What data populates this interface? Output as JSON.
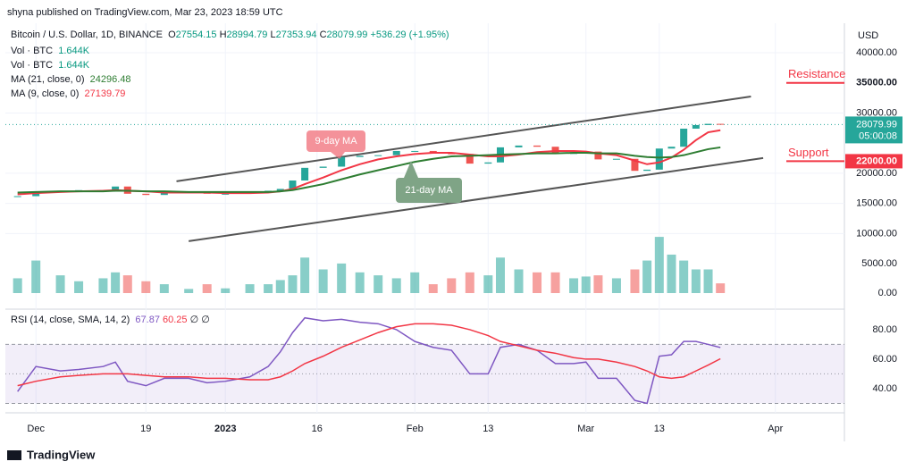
{
  "header": {
    "text": "shyna published on TradingView.com, Mar 23, 2023 18:59 UTC",
    "currency": "USD"
  },
  "legend": {
    "symbol": "Bitcoin / U.S. Dollar, 1D, BINANCE",
    "ohlc": [
      [
        "O",
        "27554.15"
      ],
      [
        "H",
        "28994.79"
      ],
      [
        "L",
        "27353.94"
      ],
      [
        "C",
        "28079.99"
      ]
    ],
    "change": "+536.29 (+1.95%)",
    "rows": [
      {
        "label": "Vol · BTC",
        "value": "1.644K"
      },
      {
        "label": "Vol · BTC",
        "value": "1.644K"
      },
      {
        "label": "MA (21, close, 0)",
        "value": "24296.48"
      },
      {
        "label": "MA (9, close, 0)",
        "value": "27139.79"
      }
    ],
    "rsi": {
      "label": "RSI (14, close, SMA, 14, 2)",
      "values": [
        "67.87",
        "60.25",
        "∅",
        "∅"
      ]
    }
  },
  "chart_data": [
    {
      "type": "candlestick",
      "up_color": "#26a69a",
      "down_color": "#ef5350",
      "x": [
        "2022-11-28",
        "2022-12-01",
        "2022-12-05",
        "2022-12-08",
        "2022-12-12",
        "2022-12-14",
        "2022-12-16",
        "2022-12-19",
        "2022-12-22",
        "2022-12-26",
        "2022-12-29",
        "2023-01-01",
        "2023-01-05",
        "2023-01-08",
        "2023-01-10",
        "2023-01-12",
        "2023-01-14",
        "2023-01-17",
        "2023-01-20",
        "2023-01-23",
        "2023-01-26",
        "2023-01-29",
        "2023-02-01",
        "2023-02-04",
        "2023-02-07",
        "2023-02-10",
        "2023-02-13",
        "2023-02-15",
        "2023-02-18",
        "2023-02-21",
        "2023-02-24",
        "2023-02-27",
        "2023-03-01",
        "2023-03-03",
        "2023-03-06",
        "2023-03-09",
        "2023-03-11",
        "2023-03-13",
        "2023-03-15",
        "2023-03-17",
        "2023-03-19",
        "2023-03-21",
        "2023-03-23"
      ],
      "values": [
        16200,
        17000,
        17100,
        17200,
        17200,
        17800,
        16600,
        16400,
        16800,
        16900,
        16600,
        16600,
        16800,
        17100,
        17400,
        18800,
        20900,
        21100,
        22700,
        22900,
        23000,
        23700,
        23700,
        23300,
        23200,
        21600,
        21800,
        24300,
        24600,
        24400,
        23200,
        23500,
        23600,
        22300,
        22400,
        20400,
        20600,
        24100,
        24400,
        27400,
        28000,
        28200,
        28079.99
      ],
      "series": [
        {
          "name": "MA (9, close, 0)",
          "color": "#f23645",
          "values": [
            16500,
            16700,
            16900,
            17000,
            17100,
            17200,
            17100,
            17000,
            16800,
            16800,
            16800,
            16700,
            16700,
            16800,
            17000,
            17400,
            18200,
            19300,
            20500,
            21500,
            22300,
            22800,
            23200,
            23400,
            23400,
            23100,
            22800,
            22800,
            23100,
            23500,
            23700,
            23700,
            23600,
            23300,
            23000,
            22100,
            21500,
            21800,
            22600,
            23900,
            25500,
            26800,
            27139.79
          ]
        },
        {
          "name": "MA (21, close, 0)",
          "color": "#2e7d32",
          "values": [
            16800,
            16900,
            17000,
            17000,
            17000,
            17100,
            17100,
            17000,
            17000,
            16900,
            16900,
            16900,
            16900,
            16900,
            17000,
            17200,
            17600,
            18200,
            19000,
            19800,
            20500,
            21200,
            21900,
            22400,
            22800,
            22900,
            23000,
            23100,
            23200,
            23300,
            23300,
            23400,
            23400,
            23300,
            23300,
            22900,
            22700,
            22600,
            22700,
            23000,
            23500,
            24000,
            24296.48
          ]
        }
      ],
      "xlim": [
        "2022-11-26",
        "2023-04-12"
      ],
      "xticks": [
        {
          "value": "2022-12-01",
          "label": "Dec"
        },
        {
          "value": "2022-12-19",
          "label": "19"
        },
        {
          "value": "2023-01-01",
          "label": "2023"
        },
        {
          "value": "2023-01-16",
          "label": "16"
        },
        {
          "value": "2023-02-01",
          "label": "Feb"
        },
        {
          "value": "2023-02-13",
          "label": "13"
        },
        {
          "value": "2023-03-01",
          "label": "Mar"
        },
        {
          "value": "2023-03-13",
          "label": "13"
        },
        {
          "value": "2023-04-01",
          "label": "Apr"
        }
      ],
      "ylim": [
        -2400,
        44300
      ],
      "yticks": [
        {
          "value": 40000,
          "label": "40000.00"
        },
        {
          "value": 30000,
          "label": "30000.00"
        },
        {
          "value": 20000,
          "label": "20000.00"
        },
        {
          "value": 15000,
          "label": "15000.00"
        },
        {
          "value": 10000,
          "label": "10000.00"
        }
      ],
      "trendlines": [
        {
          "x": [
            "2022-12-24",
            "2023-03-28"
          ],
          "values": [
            18670,
            32740
          ]
        },
        {
          "x": [
            "2022-12-26",
            "2023-03-30"
          ],
          "values": [
            8740,
            22520
          ]
        }
      ],
      "levels": [
        {
          "label": "Resistance",
          "value": 35000,
          "value_label": "35000.00"
        },
        {
          "label": "Support",
          "value": 22000,
          "value_label": "22000.00"
        }
      ],
      "last": {
        "value": 28079.99,
        "countdown": "05:00:08"
      },
      "annotations": [
        {
          "text": "9-day MA"
        },
        {
          "text": "21-day MA"
        }
      ]
    },
    {
      "type": "bar",
      "up_color": "rgba(38,166,154,0.55)",
      "down_color": "rgba(239,83,80,0.55)",
      "x": [
        "2022-11-28",
        "2022-12-01",
        "2022-12-05",
        "2022-12-08",
        "2022-12-12",
        "2022-12-14",
        "2022-12-16",
        "2022-12-19",
        "2022-12-22",
        "2022-12-26",
        "2022-12-29",
        "2023-01-01",
        "2023-01-05",
        "2023-01-08",
        "2023-01-10",
        "2023-01-12",
        "2023-01-14",
        "2023-01-17",
        "2023-01-20",
        "2023-01-23",
        "2023-01-26",
        "2023-01-29",
        "2023-02-01",
        "2023-02-04",
        "2023-02-07",
        "2023-02-10",
        "2023-02-13",
        "2023-02-15",
        "2023-02-18",
        "2023-02-21",
        "2023-02-24",
        "2023-02-27",
        "2023-03-01",
        "2023-03-03",
        "2023-03-06",
        "2023-03-09",
        "2023-03-11",
        "2023-03-13",
        "2023-03-15",
        "2023-03-17",
        "2023-03-19",
        "2023-03-21",
        "2023-03-23"
      ],
      "values": [
        2500,
        5500,
        3000,
        2000,
        2500,
        3500,
        3000,
        2000,
        1500,
        700,
        1500,
        800,
        1500,
        1500,
        2200,
        3000,
        6000,
        4000,
        5000,
        3500,
        3000,
        2500,
        3500,
        1500,
        2500,
        3500,
        3000,
        6000,
        4000,
        3500,
        3500,
        2500,
        2800,
        3000,
        2500,
        4000,
        5500,
        9500,
        6500,
        5500,
        4000,
        4000,
        1644
      ],
      "ylim": [
        0,
        45000
      ],
      "yticks": [
        {
          "value": 5000,
          "label": "5000.00"
        },
        {
          "value": 0,
          "label": "0.00"
        }
      ]
    },
    {
      "type": "line",
      "band_color": "rgba(126,87,194,0.1)",
      "x": [
        "2022-11-28",
        "2022-12-01",
        "2022-12-05",
        "2022-12-08",
        "2022-12-12",
        "2022-12-14",
        "2022-12-16",
        "2022-12-19",
        "2022-12-22",
        "2022-12-26",
        "2022-12-29",
        "2023-01-01",
        "2023-01-05",
        "2023-01-08",
        "2023-01-10",
        "2023-01-12",
        "2023-01-14",
        "2023-01-17",
        "2023-01-20",
        "2023-01-23",
        "2023-01-26",
        "2023-01-29",
        "2023-02-01",
        "2023-02-04",
        "2023-02-07",
        "2023-02-10",
        "2023-02-13",
        "2023-02-15",
        "2023-02-18",
        "2023-02-21",
        "2023-02-24",
        "2023-02-27",
        "2023-03-01",
        "2023-03-03",
        "2023-03-06",
        "2023-03-09",
        "2023-03-11",
        "2023-03-13",
        "2023-03-15",
        "2023-03-17",
        "2023-03-19",
        "2023-03-21",
        "2023-03-23"
      ],
      "series": [
        {
          "name": "RSI",
          "color": "#7e57c2",
          "values": [
            38,
            55,
            52,
            53,
            55,
            58,
            45,
            42,
            47,
            47,
            44,
            45,
            48,
            55,
            65,
            78,
            88,
            86,
            87,
            85,
            84,
            80,
            72,
            68,
            66,
            50,
            50,
            68,
            70,
            66,
            57,
            57,
            58,
            47,
            47,
            32,
            30,
            62,
            63,
            72,
            72,
            70,
            67.87
          ]
        },
        {
          "name": "SMA",
          "color": "#f23645",
          "values": [
            42,
            45,
            48,
            49,
            50,
            50,
            50,
            49,
            48,
            48,
            47,
            47,
            46,
            46,
            48,
            52,
            57,
            62,
            68,
            73,
            78,
            82,
            84,
            84,
            83,
            80,
            76,
            72,
            69,
            66,
            64,
            61,
            60,
            60,
            58,
            55,
            52,
            48,
            47,
            48,
            52,
            56,
            60.25
          ]
        }
      ],
      "ylim": [
        23.6,
        94.5
      ],
      "yticks": [
        {
          "value": 80,
          "label": "80.00"
        },
        {
          "value": 60,
          "label": "60.00"
        },
        {
          "value": 40,
          "label": "40.00"
        }
      ],
      "bands": [
        30,
        50,
        70
      ]
    }
  ],
  "footer": {
    "brand": "TradingView"
  }
}
